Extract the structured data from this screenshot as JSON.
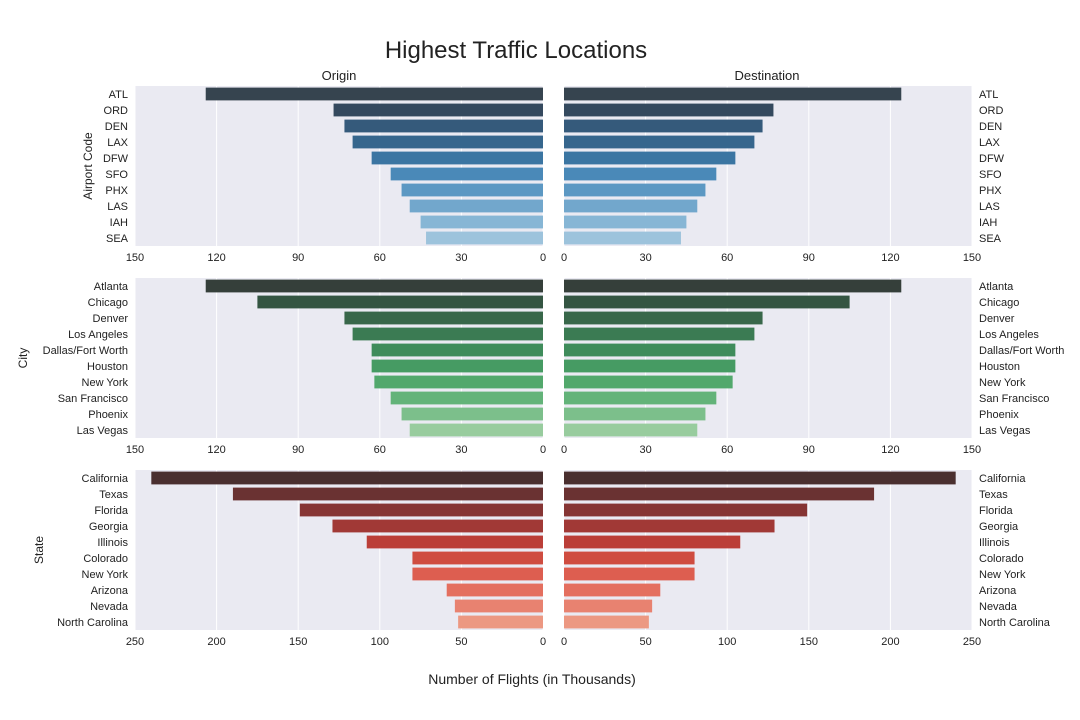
{
  "title": "Highest Traffic Locations",
  "xlabel": "Number of Flights (in Thousands)",
  "column_titles": {
    "left": "Origin",
    "right": "Destination"
  },
  "chart_data": [
    {
      "type": "bar",
      "title": "Origin",
      "ylabel": "Airport Code",
      "orientation": "horizontal",
      "xlim": [
        150,
        0
      ],
      "xticks": [
        150,
        120,
        90,
        60,
        30,
        0
      ],
      "categories": [
        "ATL",
        "ORD",
        "DEN",
        "LAX",
        "DFW",
        "SFO",
        "PHX",
        "LAS",
        "IAH",
        "SEA"
      ],
      "values": [
        124,
        77,
        73,
        70,
        63,
        56,
        52,
        49,
        45,
        43
      ],
      "colors": [
        "#36444f",
        "#34495e",
        "#355a7b",
        "#36668d",
        "#3b75a2",
        "#4a89b8",
        "#5c98c3",
        "#72a7cc",
        "#87b6d5",
        "#9dc3dc"
      ]
    },
    {
      "type": "bar",
      "title": "Destination",
      "orientation": "horizontal",
      "xlim": [
        0,
        150
      ],
      "xticks": [
        0,
        30,
        60,
        90,
        120,
        150
      ],
      "categories": [
        "ATL",
        "ORD",
        "DEN",
        "LAX",
        "DFW",
        "SFO",
        "PHX",
        "LAS",
        "IAH",
        "SEA"
      ],
      "values": [
        124,
        77,
        73,
        70,
        63,
        56,
        52,
        49,
        45,
        43
      ],
      "colors": [
        "#36444f",
        "#34495e",
        "#355a7b",
        "#36668d",
        "#3b75a2",
        "#4a89b8",
        "#5c98c3",
        "#72a7cc",
        "#87b6d5",
        "#9dc3dc"
      ]
    },
    {
      "type": "bar",
      "ylabel": "City",
      "orientation": "horizontal",
      "xlim": [
        150,
        0
      ],
      "xticks": [
        150,
        120,
        90,
        60,
        30,
        0
      ],
      "categories": [
        "Atlanta",
        "Chicago",
        "Denver",
        "Los Angeles",
        "Dallas/Fort Worth",
        "Houston",
        "New York",
        "San Francisco",
        "Phoenix",
        "Las Vegas"
      ],
      "values": [
        124,
        105,
        73,
        70,
        63,
        63,
        62,
        56,
        52,
        49
      ],
      "colors": [
        "#353f3a",
        "#345542",
        "#38674a",
        "#3b7b53",
        "#3f8c5b",
        "#469b63",
        "#52a86c",
        "#63b379",
        "#7cbf8b",
        "#98cc9e"
      ]
    },
    {
      "type": "bar",
      "orientation": "horizontal",
      "xlim": [
        0,
        150
      ],
      "xticks": [
        0,
        30,
        60,
        90,
        120,
        150
      ],
      "categories": [
        "Atlanta",
        "Chicago",
        "Denver",
        "Los Angeles",
        "Dallas/Fort Worth",
        "Houston",
        "New York",
        "San Francisco",
        "Phoenix",
        "Las Vegas"
      ],
      "values": [
        124,
        105,
        73,
        70,
        63,
        63,
        62,
        56,
        52,
        49
      ],
      "colors": [
        "#353f3a",
        "#345542",
        "#38674a",
        "#3b7b53",
        "#3f8c5b",
        "#469b63",
        "#52a86c",
        "#63b379",
        "#7cbf8b",
        "#98cc9e"
      ]
    },
    {
      "type": "bar",
      "ylabel": "State",
      "orientation": "horizontal",
      "xlim": [
        250,
        0
      ],
      "xticks": [
        250,
        200,
        150,
        100,
        50,
        0
      ],
      "categories": [
        "California",
        "Texas",
        "Florida",
        "Georgia",
        "Illinois",
        "Colorado",
        "New York",
        "Arizona",
        "Nevada",
        "North Carolina"
      ],
      "values": [
        240,
        190,
        149,
        129,
        108,
        80,
        80,
        59,
        54,
        52
      ],
      "colors": [
        "#4a2f2f",
        "#6a3232",
        "#863534",
        "#a13936",
        "#bb3e38",
        "#cf4c40",
        "#dd5e50",
        "#e46f5f",
        "#e88270",
        "#ec9882"
      ]
    },
    {
      "type": "bar",
      "orientation": "horizontal",
      "xlim": [
        0,
        250
      ],
      "xticks": [
        0,
        50,
        100,
        150,
        200,
        250
      ],
      "categories": [
        "California",
        "Texas",
        "Florida",
        "Georgia",
        "Illinois",
        "Colorado",
        "New York",
        "Arizona",
        "Nevada",
        "North Carolina"
      ],
      "values": [
        240,
        190,
        149,
        129,
        108,
        80,
        80,
        59,
        54,
        52
      ],
      "colors": [
        "#4a2f2f",
        "#6a3232",
        "#863534",
        "#a13936",
        "#bb3e38",
        "#cf4c40",
        "#dd5e50",
        "#e46f5f",
        "#e88270",
        "#ec9882"
      ]
    }
  ],
  "style": {
    "panel_background": "#eaeaf2",
    "grid_color": "#ffffff",
    "text_color": "#222222"
  }
}
